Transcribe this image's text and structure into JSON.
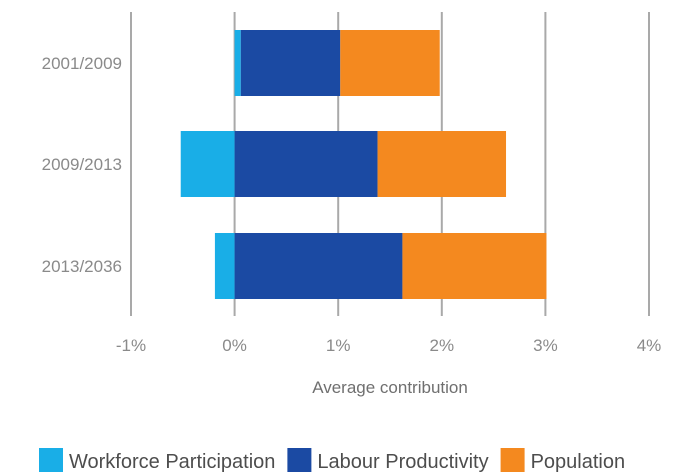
{
  "chart_data": {
    "type": "bar",
    "orientation": "horizontal",
    "stacked": true,
    "title": "",
    "xlabel": "Average contribution",
    "ylabel": "",
    "categories": [
      "2001/2009",
      "2009/2013",
      "2013/2036"
    ],
    "xlim": [
      -1,
      4
    ],
    "x_ticks": [
      -1,
      0,
      1,
      2,
      3,
      4
    ],
    "x_tick_labels": [
      "-1%",
      "0%",
      "1%",
      "2%",
      "3%",
      "4%"
    ],
    "grid": "vertical",
    "legend_position": "bottom",
    "series": [
      {
        "name": "Workforce Participation",
        "color": "#19aee7",
        "values": [
          0.06,
          -0.52,
          -0.19
        ]
      },
      {
        "name": "Labour Productivity",
        "color": "#1b4aa3",
        "values": [
          0.96,
          1.38,
          1.62
        ]
      },
      {
        "name": "Population",
        "color": "#f4891f",
        "values": [
          0.96,
          1.24,
          1.39
        ]
      }
    ]
  }
}
